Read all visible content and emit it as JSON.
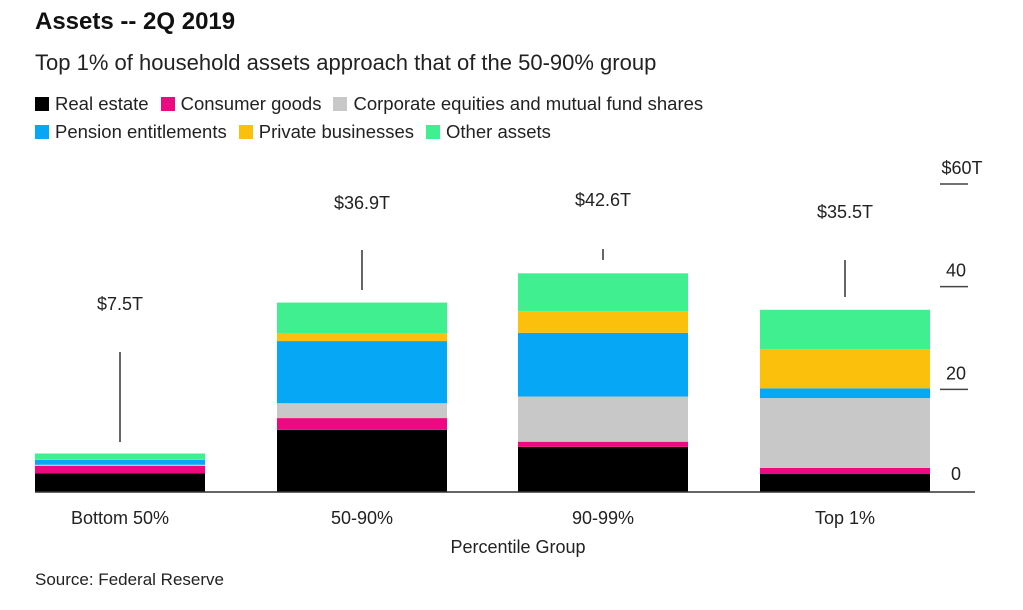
{
  "header": {
    "title": "Assets -- 2Q 2019",
    "subtitle": "Top 1% of household assets approach that of the 50-90% group"
  },
  "legend": {
    "rows": [
      [
        {
          "label": "Real estate",
          "color": "#000000"
        },
        {
          "label": "Consumer goods",
          "color": "#ec0a83"
        },
        {
          "label": "Corporate equities and mutual fund shares",
          "color": "#c8c8c8"
        }
      ],
      [
        {
          "label": "Pension entitlements",
          "color": "#06a8f5"
        },
        {
          "label": "Private businesses",
          "color": "#fbc00b"
        },
        {
          "label": "Other assets",
          "color": "#40f090"
        }
      ]
    ]
  },
  "footer": {
    "source": "Source: Federal Reserve"
  },
  "chart_data": {
    "type": "bar",
    "stacked": true,
    "title": "Assets -- 2Q 2019",
    "subtitle": "Top 1% of household assets approach that of the 50-90% group",
    "xlabel": "Percentile Group",
    "ylabel": "",
    "ylim": [
      0,
      60
    ],
    "yticks": [
      0,
      20,
      40,
      60
    ],
    "ytick_labels": [
      "0",
      "20",
      "40",
      "$60T"
    ],
    "y_axis_position": "right",
    "grid": false,
    "legend_position": "top-left",
    "categories": [
      "Bottom 50%",
      "50-90%",
      "90-99%",
      "Top 1%"
    ],
    "totals": [
      7.5,
      36.9,
      42.6,
      35.5
    ],
    "total_labels": [
      "$7.5T",
      "$36.9T",
      "$42.6T",
      "$35.5T"
    ],
    "series": [
      {
        "name": "Real estate",
        "color": "#000000",
        "values": [
          3.6,
          12.1,
          8.8,
          3.5
        ]
      },
      {
        "name": "Consumer goods",
        "color": "#ec0a83",
        "values": [
          1.5,
          2.3,
          1.0,
          1.2
        ]
      },
      {
        "name": "Corporate equities and mutual fund shares",
        "color": "#c8c8c8",
        "values": [
          0.2,
          2.9,
          8.8,
          13.6
        ]
      },
      {
        "name": "Pension entitlements",
        "color": "#06a8f5",
        "values": [
          1.0,
          12.1,
          12.4,
          1.9
        ]
      },
      {
        "name": "Private businesses",
        "color": "#fbc00b",
        "values": [
          0.1,
          1.5,
          4.2,
          7.6
        ]
      },
      {
        "name": "Other assets",
        "color": "#40f090",
        "values": [
          1.1,
          6.0,
          7.4,
          7.7
        ]
      }
    ],
    "source": "Source: Federal Reserve"
  }
}
